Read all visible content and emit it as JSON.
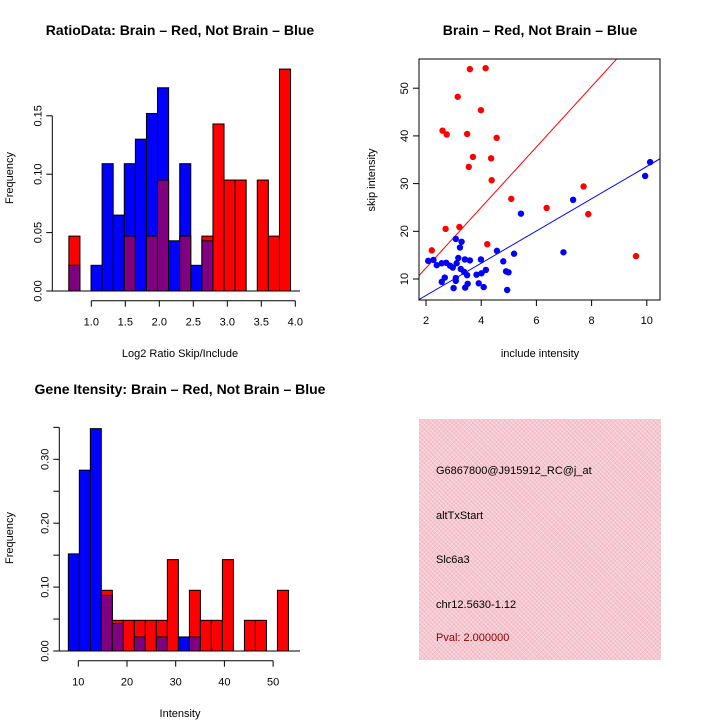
{
  "chart_data": [
    {
      "type": "bar",
      "title": "RatioData: Brain – Red, Not Brain – Blue",
      "xlabel": "Log2 Ratio Skip/Include",
      "ylabel": "Frequency",
      "xlim": [
        0.67,
        3.93
      ],
      "ylim": [
        0,
        0.19
      ],
      "xticks": [
        "1.0",
        "1.5",
        "2.0",
        "2.5",
        "3.0",
        "3.5",
        "4.0"
      ],
      "yticks": [
        "0.00",
        "0.05",
        "0.10",
        "0.15"
      ],
      "bin_start": 0.67,
      "bin_width": 0.163,
      "series": [
        {
          "name": "Brain",
          "color": "#ff0000",
          "values": [
            0.047,
            0,
            0,
            0,
            0,
            0.047,
            0,
            0.047,
            0.095,
            0,
            0.047,
            0,
            0.047,
            0.143,
            0.095,
            0.095,
            0,
            0.095,
            0.047,
            0.19
          ]
        },
        {
          "name": "Not Brain",
          "color": "#0000ff",
          "values": [
            0.022,
            0,
            0.022,
            0.109,
            0.065,
            0.109,
            0.13,
            0.152,
            0.174,
            0.043,
            0.109,
            0.022,
            0.043,
            0,
            0,
            0,
            0,
            0,
            0,
            0
          ]
        }
      ],
      "overlap_color": "#800080"
    },
    {
      "type": "scatter",
      "title": "Brain – Red, Not Brain – Blue",
      "xlabel": "include intensity",
      "ylabel": "skip intensity",
      "xlim": [
        1.75,
        10.5
      ],
      "ylim": [
        5.6,
        56
      ],
      "xticks": [
        "2",
        "4",
        "6",
        "8",
        "10"
      ],
      "yticks": [
        "10",
        "20",
        "30",
        "40",
        "50"
      ],
      "series": [
        {
          "name": "Brain",
          "color": "#ff0000",
          "points": [
            [
              2.21,
              16.0
            ],
            [
              2.6,
              41.1
            ],
            [
              2.75,
              40.3
            ],
            [
              2.71,
              20.5
            ],
            [
              3.15,
              48.2
            ],
            [
              3.21,
              20.9
            ],
            [
              3.49,
              40.4
            ],
            [
              3.55,
              33.5
            ],
            [
              3.59,
              54.0
            ],
            [
              3.7,
              35.6
            ],
            [
              3.99,
              45.4
            ],
            [
              4.16,
              54.2
            ],
            [
              4.22,
              17.3
            ],
            [
              4.36,
              35.3
            ],
            [
              4.38,
              30.7
            ],
            [
              4.56,
              39.6
            ],
            [
              5.09,
              26.8
            ],
            [
              6.37,
              24.9
            ],
            [
              7.71,
              29.4
            ],
            [
              7.88,
              23.6
            ],
            [
              9.61,
              14.8
            ]
          ],
          "fit": {
            "intercept": -0.36,
            "slope": 6.34
          }
        },
        {
          "name": "Not Brain",
          "color": "#0000ff",
          "points": [
            [
              2.08,
              13.8
            ],
            [
              2.27,
              14.0
            ],
            [
              2.39,
              12.9
            ],
            [
              2.57,
              13.3
            ],
            [
              2.73,
              13.4
            ],
            [
              2.87,
              12.8
            ],
            [
              2.97,
              12.4
            ],
            [
              3.11,
              13.3
            ],
            [
              3.17,
              14.4
            ],
            [
              3.08,
              18.4
            ],
            [
              3.23,
              16.6
            ],
            [
              3.29,
              17.8
            ],
            [
              3.41,
              14.1
            ],
            [
              3.59,
              13.9
            ],
            [
              3.99,
              14.1
            ],
            [
              3.26,
              12.1
            ],
            [
              3.38,
              11.5
            ],
            [
              3.49,
              10.8
            ],
            [
              3.83,
              10.9
            ],
            [
              4.01,
              11.2
            ],
            [
              4.17,
              11.9
            ],
            [
              2.68,
              10.3
            ],
            [
              2.57,
              9.4
            ],
            [
              3.08,
              10.2
            ],
            [
              3.08,
              9.6
            ],
            [
              3.0,
              8.1
            ],
            [
              3.42,
              8.2
            ],
            [
              3.51,
              9.0
            ],
            [
              3.91,
              9.1
            ],
            [
              4.09,
              8.3
            ],
            [
              4.57,
              15.9
            ],
            [
              4.8,
              13.7
            ],
            [
              4.9,
              11.6
            ],
            [
              4.99,
              11.4
            ],
            [
              4.94,
              7.7
            ],
            [
              5.19,
              15.3
            ],
            [
              5.44,
              23.7
            ],
            [
              6.98,
              15.6
            ],
            [
              7.33,
              26.6
            ],
            [
              9.94,
              31.6
            ],
            [
              10.12,
              34.5
            ]
          ],
          "fit": {
            "intercept": -0.21,
            "slope": 3.38
          }
        }
      ]
    },
    {
      "type": "bar",
      "title": "Gene Itensity: Brain – Red, Not Brain – Blue",
      "xlabel": "Intensity",
      "ylabel": "Frequency",
      "xlim": [
        7.95,
        53.2
      ],
      "ylim": [
        0,
        0.35
      ],
      "xticks": [
        "10",
        "20",
        "30",
        "40",
        "50"
      ],
      "yticks": [
        "0.00",
        "0.10",
        "0.20",
        "0.30"
      ],
      "bin_start": 7.95,
      "bin_width": 2.26,
      "series": [
        {
          "name": "Brain",
          "color": "#ff0000",
          "values": [
            0,
            0,
            0,
            0.095,
            0.048,
            0.048,
            0.048,
            0.048,
            0.048,
            0.143,
            0,
            0.095,
            0.048,
            0.048,
            0.143,
            0,
            0.048,
            0.048,
            0,
            0.095
          ]
        },
        {
          "name": "Not Brain",
          "color": "#0000ff",
          "values": [
            0.152,
            0.283,
            0.348,
            0.087,
            0.043,
            0,
            0.022,
            0,
            0.022,
            0,
            0.022,
            0.022,
            0,
            0,
            0,
            0,
            0,
            0,
            0,
            0
          ]
        }
      ],
      "overlap_color": "#800080"
    }
  ],
  "info_panel": {
    "probe": "G6867800@J915912_RC@j_at",
    "event_type": "altTxStart",
    "gene": "Slc6a3",
    "location": "chr12.5630-1.12",
    "pval": "Pval: 2.000000",
    "pval_color": "#8b0000",
    "background": "#f6c6cf"
  }
}
